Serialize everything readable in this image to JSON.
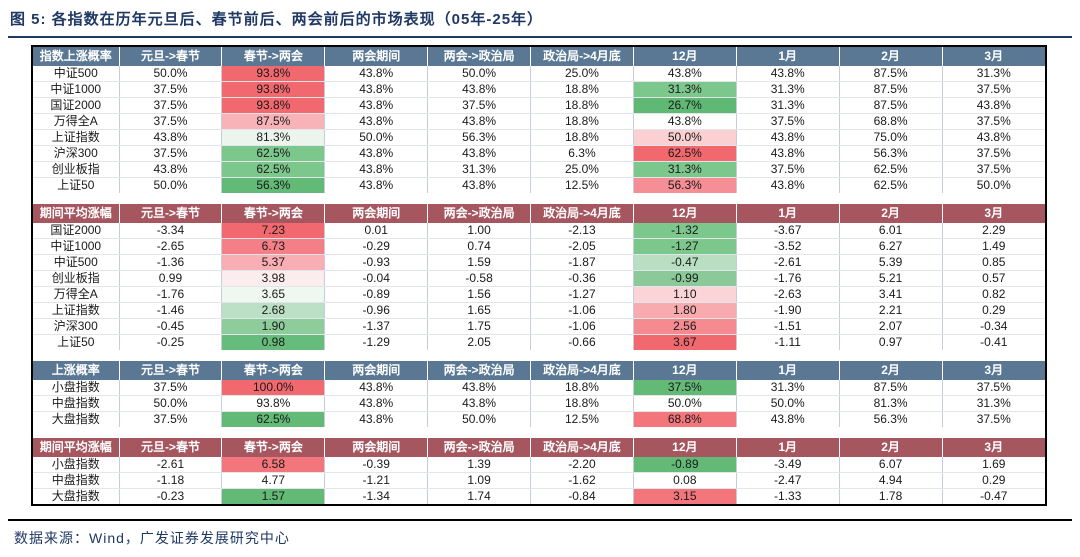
{
  "title": "图 5: 各指数在历年元旦后、春节前后、两会前后的市场表现（05年-25年）",
  "footer": "数据来源：Wind，广发证券发展研究中心",
  "colors": {
    "title_text": "#1F3864",
    "blue_header": "#5A7894",
    "red_header": "#A5565F",
    "strong_red_cell": "#F1686E",
    "strong_green_cell": "#62BA76",
    "outer_border": "#000000"
  },
  "columns": [
    "元旦->春节",
    "春节->两会",
    "两会期间",
    "两会->政治局",
    "政治局->4月底",
    "12月",
    "1月",
    "2月",
    "3月"
  ],
  "tables": [
    {
      "label": "指数上涨概率",
      "theme": "blue",
      "rows": [
        {
          "name": "中证500",
          "values": [
            "50.0%",
            "93.8%",
            "43.8%",
            "50.0%",
            "25.0%",
            "43.8%",
            "43.8%",
            "87.5%",
            "31.3%"
          ],
          "bg": [
            "",
            "#F1686E",
            "",
            "",
            "",
            "",
            "",
            "",
            ""
          ]
        },
        {
          "name": "中证1000",
          "values": [
            "37.5%",
            "93.8%",
            "43.8%",
            "43.8%",
            "18.8%",
            "31.3%",
            "31.3%",
            "87.5%",
            "37.5%"
          ],
          "bg": [
            "",
            "#F1686E",
            "",
            "",
            "",
            "#7CC78C",
            "",
            "",
            ""
          ]
        },
        {
          "name": "国证2000",
          "values": [
            "37.5%",
            "93.8%",
            "43.8%",
            "37.5%",
            "18.8%",
            "26.7%",
            "31.3%",
            "87.5%",
            "43.8%"
          ],
          "bg": [
            "",
            "#F1686E",
            "",
            "",
            "",
            "#5FB873",
            "",
            "",
            ""
          ]
        },
        {
          "name": "万得全A",
          "values": [
            "37.5%",
            "87.5%",
            "43.8%",
            "43.8%",
            "18.8%",
            "43.8%",
            "37.5%",
            "68.8%",
            "37.5%"
          ],
          "bg": [
            "",
            "#F7B3B7",
            "",
            "",
            "",
            "",
            "",
            "",
            ""
          ]
        },
        {
          "name": "上证指数",
          "values": [
            "43.8%",
            "81.3%",
            "50.0%",
            "56.3%",
            "18.8%",
            "50.0%",
            "43.8%",
            "75.0%",
            "43.8%"
          ],
          "bg": [
            "",
            "#EBF5EE",
            "",
            "",
            "",
            "#FAD0D2",
            "",
            "",
            ""
          ]
        },
        {
          "name": "沪深300",
          "values": [
            "37.5%",
            "62.5%",
            "43.8%",
            "43.8%",
            "6.3%",
            "62.5%",
            "43.8%",
            "56.3%",
            "37.5%"
          ],
          "bg": [
            "",
            "#7CC78C",
            "",
            "",
            "",
            "#F1686E",
            "",
            "",
            ""
          ]
        },
        {
          "name": "创业板指",
          "values": [
            "43.8%",
            "62.5%",
            "43.8%",
            "31.3%",
            "25.0%",
            "31.3%",
            "37.5%",
            "62.5%",
            "37.5%"
          ],
          "bg": [
            "",
            "#7CC78C",
            "",
            "",
            "",
            "#7CC78C",
            "",
            "",
            ""
          ]
        },
        {
          "name": "上证50",
          "values": [
            "50.0%",
            "56.3%",
            "43.8%",
            "43.8%",
            "12.5%",
            "56.3%",
            "43.8%",
            "62.5%",
            "50.0%"
          ],
          "bg": [
            "",
            "#62BA76",
            "",
            "",
            "",
            "#F58F95",
            "",
            "",
            ""
          ]
        }
      ]
    },
    {
      "label": "期间平均涨幅",
      "theme": "red",
      "rows": [
        {
          "name": "国证2000",
          "values": [
            "-3.34",
            "7.23",
            "0.01",
            "1.00",
            "-2.13",
            "-1.32",
            "-3.67",
            "6.01",
            "2.29"
          ],
          "bg": [
            "",
            "#F1686E",
            "",
            "",
            "",
            "#7CC78C",
            "",
            "",
            ""
          ]
        },
        {
          "name": "中证1000",
          "values": [
            "-2.65",
            "6.73",
            "-0.29",
            "0.74",
            "-2.05",
            "-1.27",
            "-3.52",
            "6.27",
            "1.49"
          ],
          "bg": [
            "",
            "#F47F86",
            "",
            "",
            "",
            "#7CC78C",
            "",
            "",
            ""
          ]
        },
        {
          "name": "中证500",
          "values": [
            "-1.36",
            "5.37",
            "-0.93",
            "1.59",
            "-1.87",
            "-0.47",
            "-2.61",
            "5.39",
            "0.85"
          ],
          "bg": [
            "",
            "#F8AEB3",
            "",
            "",
            "",
            "#B9DFC2",
            "",
            "",
            ""
          ]
        },
        {
          "name": "创业板指",
          "values": [
            "0.99",
            "3.98",
            "-0.04",
            "-0.58",
            "-0.36",
            "-0.99",
            "-1.76",
            "5.21",
            "0.57"
          ],
          "bg": [
            "",
            "#FBECED",
            "",
            "",
            "",
            "#8BCA98",
            "",
            "",
            ""
          ]
        },
        {
          "name": "万得全A",
          "values": [
            "-1.76",
            "3.65",
            "-0.89",
            "1.56",
            "-1.27",
            "1.10",
            "-2.63",
            "3.41",
            "0.82"
          ],
          "bg": [
            "",
            "#EFF7F1",
            "",
            "",
            "",
            "#FAD4D6",
            "",
            "",
            ""
          ]
        },
        {
          "name": "上证指数",
          "values": [
            "-1.46",
            "2.68",
            "-0.96",
            "1.65",
            "-1.06",
            "1.80",
            "-1.90",
            "2.21",
            "0.29"
          ],
          "bg": [
            "",
            "#BCE0C5",
            "",
            "",
            "",
            "#F7ABAF",
            "",
            "",
            ""
          ]
        },
        {
          "name": "沪深300",
          "values": [
            "-0.45",
            "1.90",
            "-1.37",
            "1.75",
            "-1.06",
            "2.56",
            "-1.51",
            "2.07",
            "-0.34"
          ],
          "bg": [
            "",
            "#8FCC9C",
            "",
            "",
            "",
            "#F58A90",
            "",
            "",
            ""
          ]
        },
        {
          "name": "上证50",
          "values": [
            "-0.25",
            "0.98",
            "-1.29",
            "2.05",
            "-0.66",
            "3.67",
            "-1.11",
            "0.97",
            "-0.41"
          ],
          "bg": [
            "",
            "#66BC7A",
            "",
            "",
            "",
            "#F1686E",
            "",
            "",
            ""
          ]
        }
      ]
    },
    {
      "label": "上涨概率",
      "theme": "blue",
      "rows": [
        {
          "name": "小盘指数",
          "values": [
            "37.5%",
            "100.0%",
            "43.8%",
            "43.8%",
            "18.8%",
            "37.5%",
            "31.3%",
            "87.5%",
            "37.5%"
          ],
          "bg": [
            "",
            "#F1686E",
            "",
            "",
            "",
            "#62BA76",
            "",
            "",
            ""
          ]
        },
        {
          "name": "中盘指数",
          "values": [
            "50.0%",
            "93.8%",
            "43.8%",
            "43.8%",
            "18.8%",
            "50.0%",
            "50.0%",
            "81.3%",
            "31.3%"
          ],
          "bg": [
            "",
            "",
            "",
            "",
            "",
            "",
            "",
            "",
            ""
          ]
        },
        {
          "name": "大盘指数",
          "values": [
            "37.5%",
            "62.5%",
            "43.8%",
            "50.0%",
            "12.5%",
            "68.8%",
            "43.8%",
            "56.3%",
            "37.5%"
          ],
          "bg": [
            "",
            "#62BA76",
            "",
            "",
            "",
            "#F3767D",
            "",
            "",
            ""
          ]
        }
      ]
    },
    {
      "label": "期间平均涨幅",
      "theme": "red",
      "rows": [
        {
          "name": "小盘指数",
          "values": [
            "-2.61",
            "6.58",
            "-0.39",
            "1.39",
            "-2.20",
            "-0.89",
            "-3.49",
            "6.07",
            "1.69"
          ],
          "bg": [
            "",
            "#F3767D",
            "",
            "",
            "",
            "#62BA76",
            "",
            "",
            ""
          ]
        },
        {
          "name": "中盘指数",
          "values": [
            "-1.18",
            "4.77",
            "-1.21",
            "1.09",
            "-1.62",
            "0.08",
            "-2.47",
            "4.94",
            "0.29"
          ],
          "bg": [
            "",
            "",
            "",
            "",
            "",
            "",
            "",
            "",
            ""
          ]
        },
        {
          "name": "大盘指数",
          "values": [
            "-0.23",
            "1.57",
            "-1.34",
            "1.74",
            "-0.84",
            "3.15",
            "-1.33",
            "1.78",
            "-0.47"
          ],
          "bg": [
            "",
            "#62BA76",
            "",
            "",
            "",
            "#F3767D",
            "",
            "",
            ""
          ]
        }
      ]
    }
  ]
}
